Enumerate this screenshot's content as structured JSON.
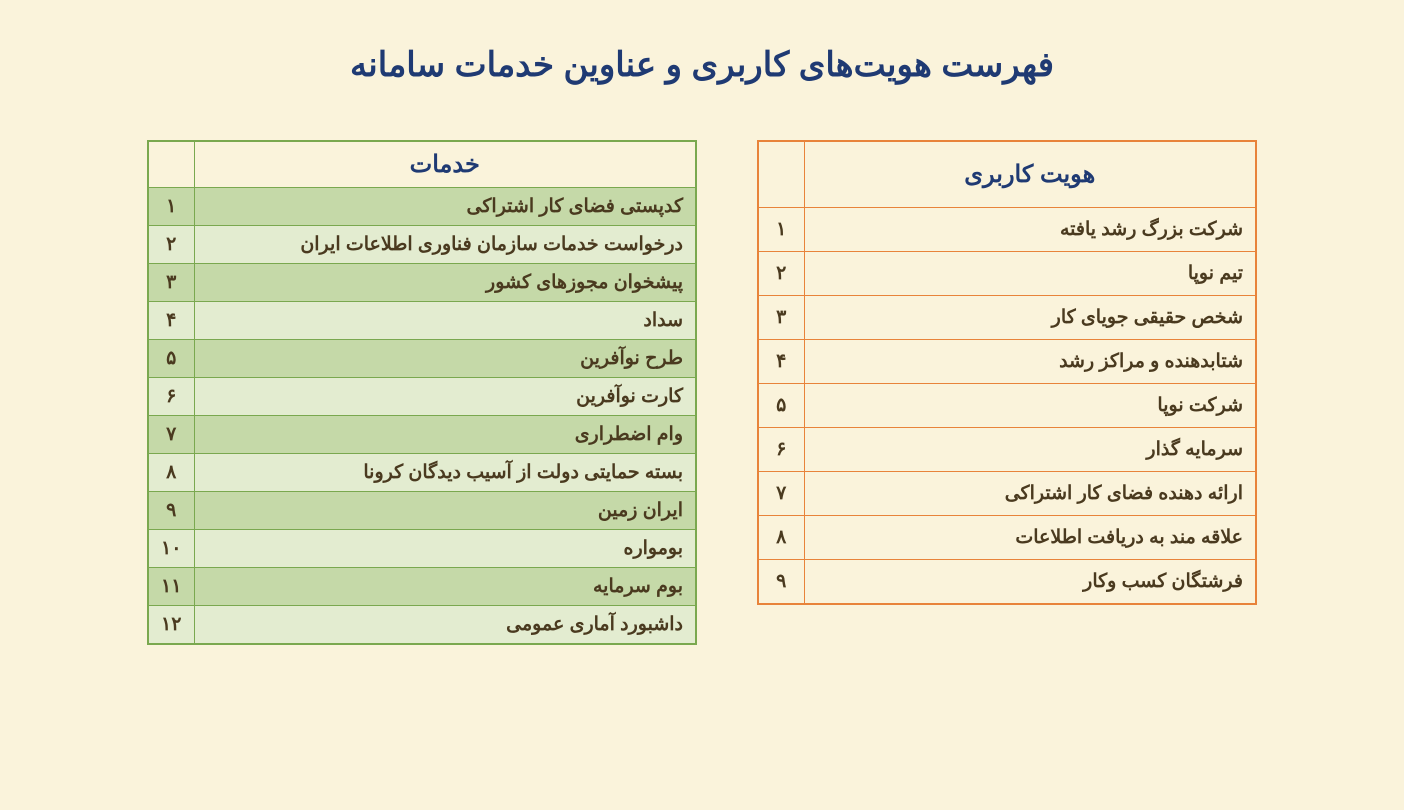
{
  "title": "فهرست هویت‌های کاربری و عناوین خدمات سامانه",
  "identity_table": {
    "header": "هویت کاربری",
    "border_color": "#e8833a",
    "header_color": "#1f3a73",
    "text_color": "#4a3a1f",
    "bg_color": "#faf3db",
    "header_fontsize": 24,
    "cell_fontsize": 19,
    "rows": [
      {
        "num": "۱",
        "label": "شرکت بزرگ رشد یافته"
      },
      {
        "num": "۲",
        "label": "تیم نوپا"
      },
      {
        "num": "۳",
        "label": "شخص حقیقی جویای کار"
      },
      {
        "num": "۴",
        "label": "شتابدهنده و مراکز رشد"
      },
      {
        "num": "۵",
        "label": "شرکت نوپا"
      },
      {
        "num": "۶",
        "label": "سرمایه گذار"
      },
      {
        "num": "۷",
        "label": "ارائه دهنده فضای کار اشتراکی"
      },
      {
        "num": "۸",
        "label": "علاقه مند به دریافت اطلاعات"
      },
      {
        "num": "۹",
        "label": "فرشتگان کسب وکار"
      }
    ]
  },
  "services_table": {
    "header": "خدمات",
    "border_color": "#7aa84f",
    "header_color": "#1f3a73",
    "text_color": "#4a3a1f",
    "row_odd_bg": "#c5d9a8",
    "row_even_bg": "#e3ecd0",
    "header_fontsize": 24,
    "cell_fontsize": 19,
    "rows": [
      {
        "num": "۱",
        "label": "کدپستی فضای کار اشتراکی"
      },
      {
        "num": "۲",
        "label": "درخواست خدمات سازمان فناوری اطلاعات ایران"
      },
      {
        "num": "۳",
        "label": "پیشخوان مجوزهای کشور"
      },
      {
        "num": "۴",
        "label": "سداد"
      },
      {
        "num": "۵",
        "label": "طرح نوآفرین"
      },
      {
        "num": "۶",
        "label": "کارت نوآفرین"
      },
      {
        "num": "۷",
        "label": "وام اضطراری"
      },
      {
        "num": "۸",
        "label": "بسته حمایتی دولت از آسیب دیدگان کرونا"
      },
      {
        "num": "۹",
        "label": "ایران زمین"
      },
      {
        "num": "۱۰",
        "label": "بومواره"
      },
      {
        "num": "۱۱",
        "label": "بوم سرمایه"
      },
      {
        "num": "۱۲",
        "label": "داشبورد آماری عمومی"
      }
    ]
  },
  "page_bg": "#faf3db"
}
